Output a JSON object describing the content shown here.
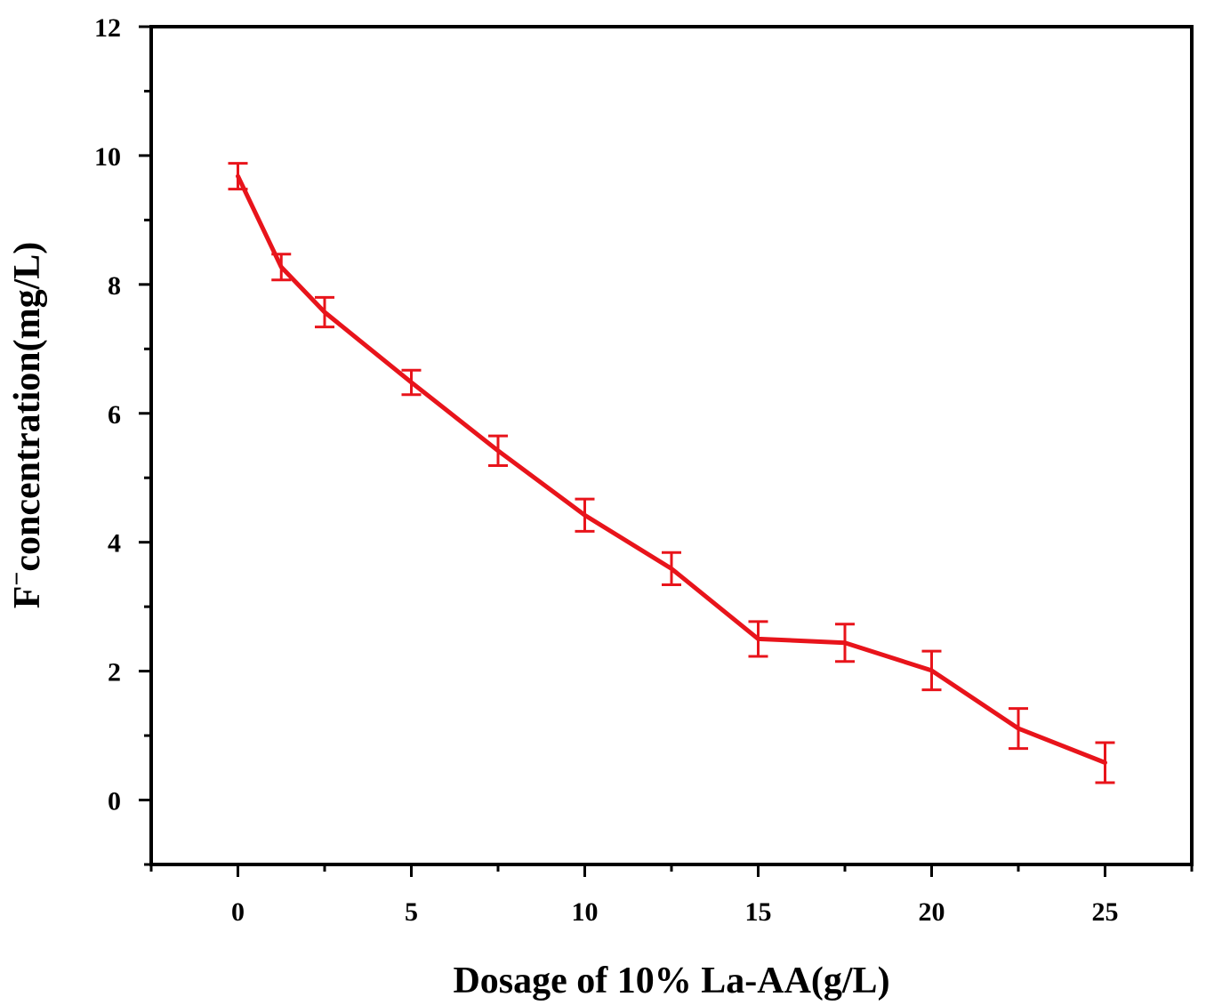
{
  "chart_data": {
    "type": "line",
    "xlabel": "Dosage of 10% La-AA(g/L)",
    "ylabel_main": "F",
    "ylabel_sup": "−",
    "ylabel_rest": "concentration(mg/L)",
    "xlim": [
      -2.5,
      27.5
    ],
    "ylim": [
      -1,
      12
    ],
    "x_ticks": [
      0,
      5,
      10,
      15,
      20,
      25
    ],
    "x_minor_ticks": [
      -2.5,
      2.5,
      7.5,
      12.5,
      17.5,
      22.5,
      27.5
    ],
    "y_ticks": [
      0,
      2,
      4,
      6,
      8,
      10,
      12
    ],
    "y_minor_ticks": [
      -1,
      1,
      3,
      5,
      7,
      9,
      11
    ],
    "grid": false,
    "legend": "none",
    "line_color": "#e8141b",
    "series": [
      {
        "x": [
          0,
          1.25,
          2.5,
          5,
          7.5,
          10,
          12.5,
          15,
          17.5,
          20,
          22.5,
          25
        ],
        "y": [
          9.68,
          8.27,
          7.57,
          6.48,
          5.42,
          4.42,
          3.59,
          2.5,
          2.44,
          2.01,
          1.11,
          0.58
        ],
        "error": [
          0.2,
          0.2,
          0.23,
          0.19,
          0.23,
          0.25,
          0.25,
          0.27,
          0.29,
          0.3,
          0.31,
          0.31
        ]
      }
    ]
  }
}
